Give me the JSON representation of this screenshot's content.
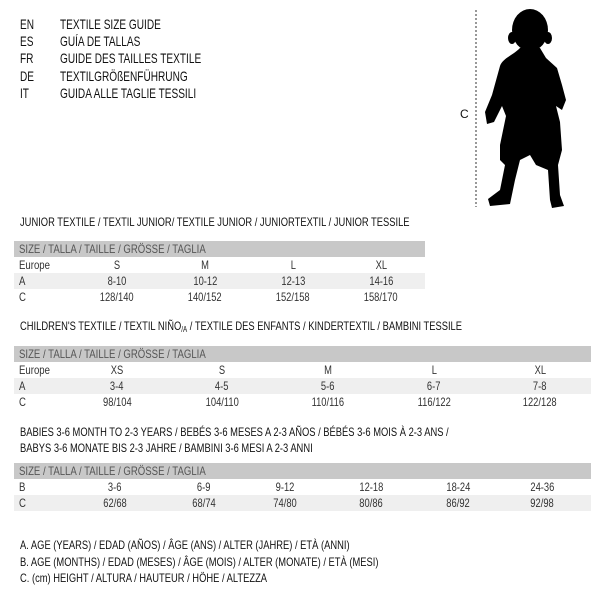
{
  "languages": [
    {
      "code": "EN",
      "title": "TEXTILE SIZE GUIDE"
    },
    {
      "code": "ES",
      "title": "GUÍA DE TALLAS"
    },
    {
      "code": "FR",
      "title": "GUIDE DES TAILLES TEXTILE"
    },
    {
      "code": "DE",
      "title": "TEXTILGRÖßENFÜHRUNG"
    },
    {
      "code": "IT",
      "title": "GUIDA ALLE TAGLIE TESSILI"
    }
  ],
  "figure": {
    "measure_label": "C"
  },
  "tables": [
    {
      "title": "JUNIOR TEXTILE / TEXTIL JUNIOR/ TEXTILE JUNIOR / JUNIORTEXTIL / JUNIOR TESSILE",
      "header": "SIZE / TALLA / TAILLE / GRÖSSE / TAGLIA",
      "rows": [
        {
          "label": "Europe",
          "values": [
            "S",
            "M",
            "L",
            "XL"
          ]
        },
        {
          "label": "A",
          "values": [
            "8-10",
            "10-12",
            "12-13",
            "14-16"
          ]
        },
        {
          "label": "C",
          "values": [
            "128/140",
            "140/152",
            "152/158",
            "158/170"
          ]
        }
      ]
    },
    {
      "title": "CHILDREN'S TEXTILE / TEXTIL NIÑO",
      "title_sub": "/A",
      "title_rest": " / TEXTILE DES ENFANTS / KINDERTEXTIL / BAMBINI TESSILE",
      "header": "SIZE / TALLA / TAILLE / GRÖSSE / TAGLIA",
      "rows": [
        {
          "label": "Europe",
          "values": [
            "XS",
            "S",
            "M",
            "L",
            "XL"
          ]
        },
        {
          "label": "A",
          "values": [
            "3-4",
            "4-5",
            "5-6",
            "6-7",
            "7-8"
          ]
        },
        {
          "label": "C",
          "values": [
            "98/104",
            "104/110",
            "110/116",
            "116/122",
            "122/128"
          ]
        }
      ]
    },
    {
      "title": "BABIES 3-6 MONTH TO 2-3 YEARS / BEBÉS 3-6 MESES A 2-3 AÑOS / BÉBÉS 3-6 MOIS À 2-3 ANS /",
      "title2": "BABYS 3-6 MONATE BIS 2-3 JAHRE / BAMBINI 3-6 MESI A 2-3 ANNI",
      "header": "SIZE / TALLA / TAILLE / GRÖSSE / TAGLIA",
      "rows": [
        {
          "label": "B",
          "values": [
            "3-6",
            "6-9",
            "9-12",
            "12-18",
            "18-24",
            "24-36"
          ]
        },
        {
          "label": "C",
          "values": [
            "62/68",
            "68/74",
            "74/80",
            "80/86",
            "86/92",
            "92/98"
          ]
        }
      ]
    }
  ],
  "legend": [
    "A. AGE (YEARS) / EDAD (AÑOS) / ÂGE (ANS) / ALTER (JAHRE) / ETÀ (ANNI)",
    "B. AGE (MONTHS) / EDAD (MESES) / ÂGE (MOIS) / ALTER (MONATE) / ETÀ (MESI)",
    "C. (cm) HEIGHT / ALTURA / HAUTEUR / HÖHE / ALTEZZA"
  ]
}
